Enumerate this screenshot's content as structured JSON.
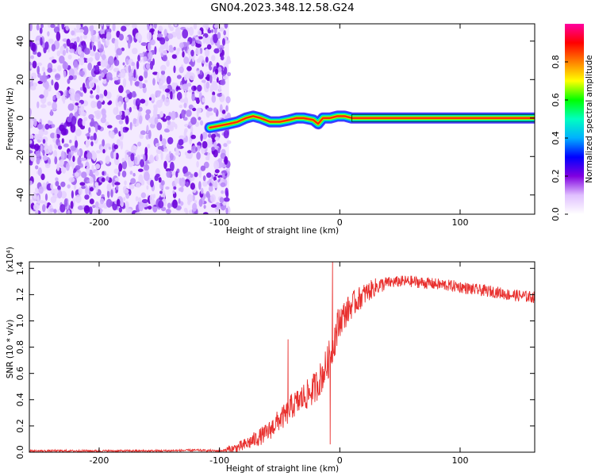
{
  "title": "GN04.2023.348.12.58.G24",
  "chart_data": [
    {
      "type": "heatmap",
      "xlabel": "Height of straight line (km)",
      "ylabel": "Frequency (Hz)",
      "xlim": [
        -258,
        162
      ],
      "ylim": [
        -50,
        49
      ],
      "xticks": [
        -200,
        -100,
        0,
        100
      ],
      "yticks": [
        -40,
        -20,
        0,
        20,
        40
      ],
      "xtick_labels": [
        "-200",
        "-100",
        "0",
        "100"
      ],
      "ytick_labels": [
        "-40",
        "-20",
        "0",
        "20",
        "40"
      ],
      "noise_region_x": [
        -258,
        -92
      ],
      "ridge": {
        "x": [
          -108,
          -100,
          -92,
          -85,
          -78,
          -72,
          -66,
          -58,
          -50,
          -42,
          -36,
          -30,
          -22,
          -18,
          -14,
          -8,
          -2,
          4,
          10,
          162
        ],
        "frequency": [
          -5,
          -4,
          -3,
          -2,
          0,
          1,
          0,
          -2,
          -2,
          -1,
          0,
          0,
          -1,
          -3,
          0,
          0,
          1,
          1,
          0,
          0
        ]
      },
      "colorbar": {
        "label": "Normalized spectral amplitude",
        "range": [
          0,
          1
        ],
        "ticks": [
          0.0,
          0.2,
          0.4,
          0.6,
          0.8
        ],
        "tick_labels": [
          "0.0",
          "0.2",
          "0.4",
          "0.6",
          "0.8"
        ],
        "colors": [
          "#ffffff",
          "#e0c0ff",
          "#8000e0",
          "#0000ff",
          "#00b0ff",
          "#00ffc0",
          "#00ff00",
          "#ffff00",
          "#ff8000",
          "#ff0000",
          "#ff00a0"
        ]
      },
      "grid": false
    },
    {
      "type": "line",
      "xlabel": "Height of straight line (km)",
      "ylabel": "SNR (10 * v/v)",
      "y_multiplier": "(x10⁴)",
      "xlim": [
        -258,
        162
      ],
      "ylim": [
        0,
        1.45
      ],
      "xticks": [
        -200,
        -100,
        0,
        100
      ],
      "yticks": [
        0.0,
        0.2,
        0.4,
        0.6,
        0.8,
        1.0,
        1.2,
        1.4
      ],
      "xtick_labels": [
        "-200",
        "-100",
        "0",
        "100"
      ],
      "ytick_labels": [
        "0.0",
        "0.2",
        "0.4",
        "0.6",
        "0.8",
        "1.0",
        "1.2",
        "1.4"
      ],
      "color": "#e8302e",
      "x": [
        -258,
        -200,
        -150,
        -120,
        -100,
        -90,
        -80,
        -70,
        -60,
        -50,
        -45,
        -40,
        -35,
        -30,
        -25,
        -20,
        -15,
        -10,
        -5,
        0,
        10,
        20,
        30,
        40,
        50,
        60,
        70,
        80,
        90,
        100,
        110,
        120,
        130,
        140,
        150,
        162
      ],
      "values": [
        0.01,
        0.01,
        0.01,
        0.015,
        0.01,
        0.02,
        0.05,
        0.1,
        0.15,
        0.25,
        0.28,
        0.35,
        0.38,
        0.42,
        0.45,
        0.5,
        0.58,
        0.68,
        0.85,
        1.0,
        1.12,
        1.2,
        1.26,
        1.29,
        1.3,
        1.3,
        1.29,
        1.28,
        1.27,
        1.26,
        1.24,
        1.23,
        1.22,
        1.2,
        1.19,
        1.18
      ],
      "spikes": [
        {
          "x": -43,
          "value": 0.86
        },
        {
          "x": -8,
          "value": 0.06
        },
        {
          "x": -6,
          "value": 1.45
        }
      ],
      "grid": false
    }
  ]
}
